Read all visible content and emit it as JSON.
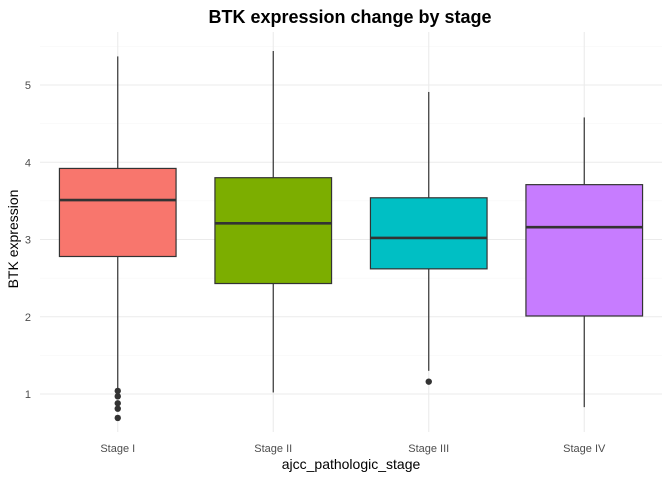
{
  "chart_data": {
    "type": "box",
    "title": "BTK expression change by stage",
    "xlabel": "ajcc_pathologic_stage",
    "ylabel": "BTK expression",
    "ylim": [
      0.5,
      5.6
    ],
    "yticks": [
      1,
      2,
      3,
      4,
      5
    ],
    "grid": true,
    "legend": "none",
    "categories": [
      "Stage I",
      "Stage II",
      "Stage III",
      "Stage IV"
    ],
    "boxes": [
      {
        "category": "Stage I",
        "min": 1.07,
        "q1": 2.78,
        "median": 3.51,
        "q3": 3.92,
        "max": 5.37,
        "outliers": [
          1.04,
          0.97,
          0.88,
          0.81,
          0.69
        ],
        "color": "#F8766D"
      },
      {
        "category": "Stage II",
        "min": 1.02,
        "q1": 2.43,
        "median": 3.21,
        "q3": 3.8,
        "max": 5.44,
        "outliers": [],
        "color": "#7CAE00"
      },
      {
        "category": "Stage III",
        "min": 1.3,
        "q1": 2.62,
        "median": 3.02,
        "q3": 3.54,
        "max": 4.91,
        "outliers": [
          1.16
        ],
        "color": "#00BFC4"
      },
      {
        "category": "Stage IV",
        "min": 0.83,
        "q1": 2.01,
        "median": 3.16,
        "q3": 3.71,
        "max": 4.58,
        "outliers": [],
        "color": "#C77CFF"
      }
    ]
  }
}
